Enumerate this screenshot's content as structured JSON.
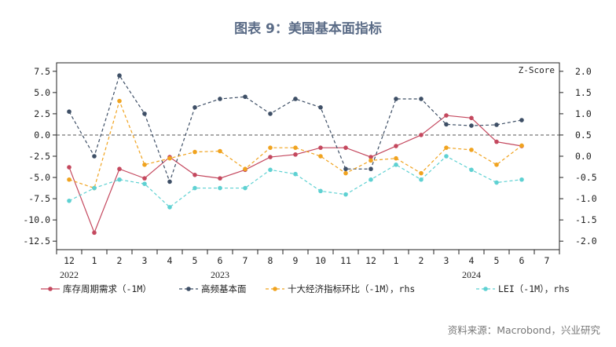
{
  "title": "图表 9：美国基本面指标",
  "source": "资料来源：Macrobond，兴业研究",
  "chart_data": {
    "type": "line",
    "x_ticks": [
      "12",
      "1",
      "2",
      "3",
      "4",
      "5",
      "6",
      "7",
      "8",
      "9",
      "10",
      "11",
      "12",
      "1",
      "2",
      "3",
      "4",
      "5",
      "6",
      "7"
    ],
    "year_labels": [
      {
        "label": "2022",
        "tick_index": 0
      },
      {
        "label": "2023",
        "tick_index": 6
      },
      {
        "label": "2024",
        "tick_index": 16
      }
    ],
    "left_axis": {
      "ylim": [
        -13.5,
        8.5
      ],
      "ticks": [
        "7.5",
        "5.0",
        "2.5",
        "0.0",
        "-2.5",
        "-5.0",
        "-7.5",
        "-10.0",
        "-12.5"
      ],
      "tick_values": [
        7.5,
        5.0,
        2.5,
        0.0,
        -2.5,
        -5.0,
        -7.5,
        -10.0,
        -12.5
      ]
    },
    "right_axis": {
      "label": "Z-Score",
      "ylim": [
        -2.2,
        2.2
      ],
      "ticks": [
        "2.0",
        "1.5",
        "1.0",
        "0.5",
        "0.0",
        "-0.5",
        "-1.0",
        "-1.5",
        "-2.0"
      ],
      "tick_values": [
        2.0,
        1.5,
        1.0,
        0.5,
        0.0,
        -0.5,
        -1.0,
        -1.5,
        -2.0
      ]
    },
    "zero_line": {
      "axis": "left",
      "value": 0,
      "style": "dashed"
    },
    "series": [
      {
        "name": "库存周期需求（-1M）",
        "axis": "left",
        "color": "#c4485e",
        "dash": "solid",
        "values": [
          -3.8,
          -11.5,
          -4.0,
          -5.1,
          -2.6,
          -4.7,
          -5.1,
          -4.1,
          -2.6,
          -2.3,
          -1.5,
          -1.5,
          -2.6,
          -1.3,
          0.0,
          2.3,
          2.0,
          -0.8,
          -1.3
        ]
      },
      {
        "name": "高频基本面",
        "axis": "right",
        "color": "#3e4f66",
        "dash": "dashed",
        "values": [
          1.05,
          0.0,
          1.9,
          1.0,
          -0.6,
          1.15,
          1.35,
          1.4,
          1.0,
          1.35,
          1.15,
          -0.3,
          -0.3,
          1.35,
          1.35,
          0.75,
          0.72,
          0.74,
          0.85
        ]
      },
      {
        "name": "十大经济指标环比（-1M），rhs",
        "axis": "right",
        "color": "#f0a31f",
        "dash": "dashed",
        "values": [
          -0.55,
          -0.75,
          1.3,
          -0.2,
          -0.05,
          0.1,
          0.12,
          -0.3,
          0.2,
          0.2,
          0.0,
          -0.4,
          -0.1,
          -0.05,
          -0.4,
          0.2,
          0.15,
          -0.2,
          0.25
        ]
      },
      {
        "name": "LEI（-1M），rhs",
        "axis": "right",
        "color": "#5ed1d2",
        "dash": "dashed",
        "values": [
          -1.05,
          -0.75,
          -0.55,
          -0.65,
          -1.2,
          -0.75,
          -0.75,
          -0.75,
          -0.32,
          -0.42,
          -0.82,
          -0.9,
          -0.55,
          -0.2,
          -0.55,
          0.0,
          -0.32,
          -0.62,
          -0.55
        ]
      }
    ]
  }
}
